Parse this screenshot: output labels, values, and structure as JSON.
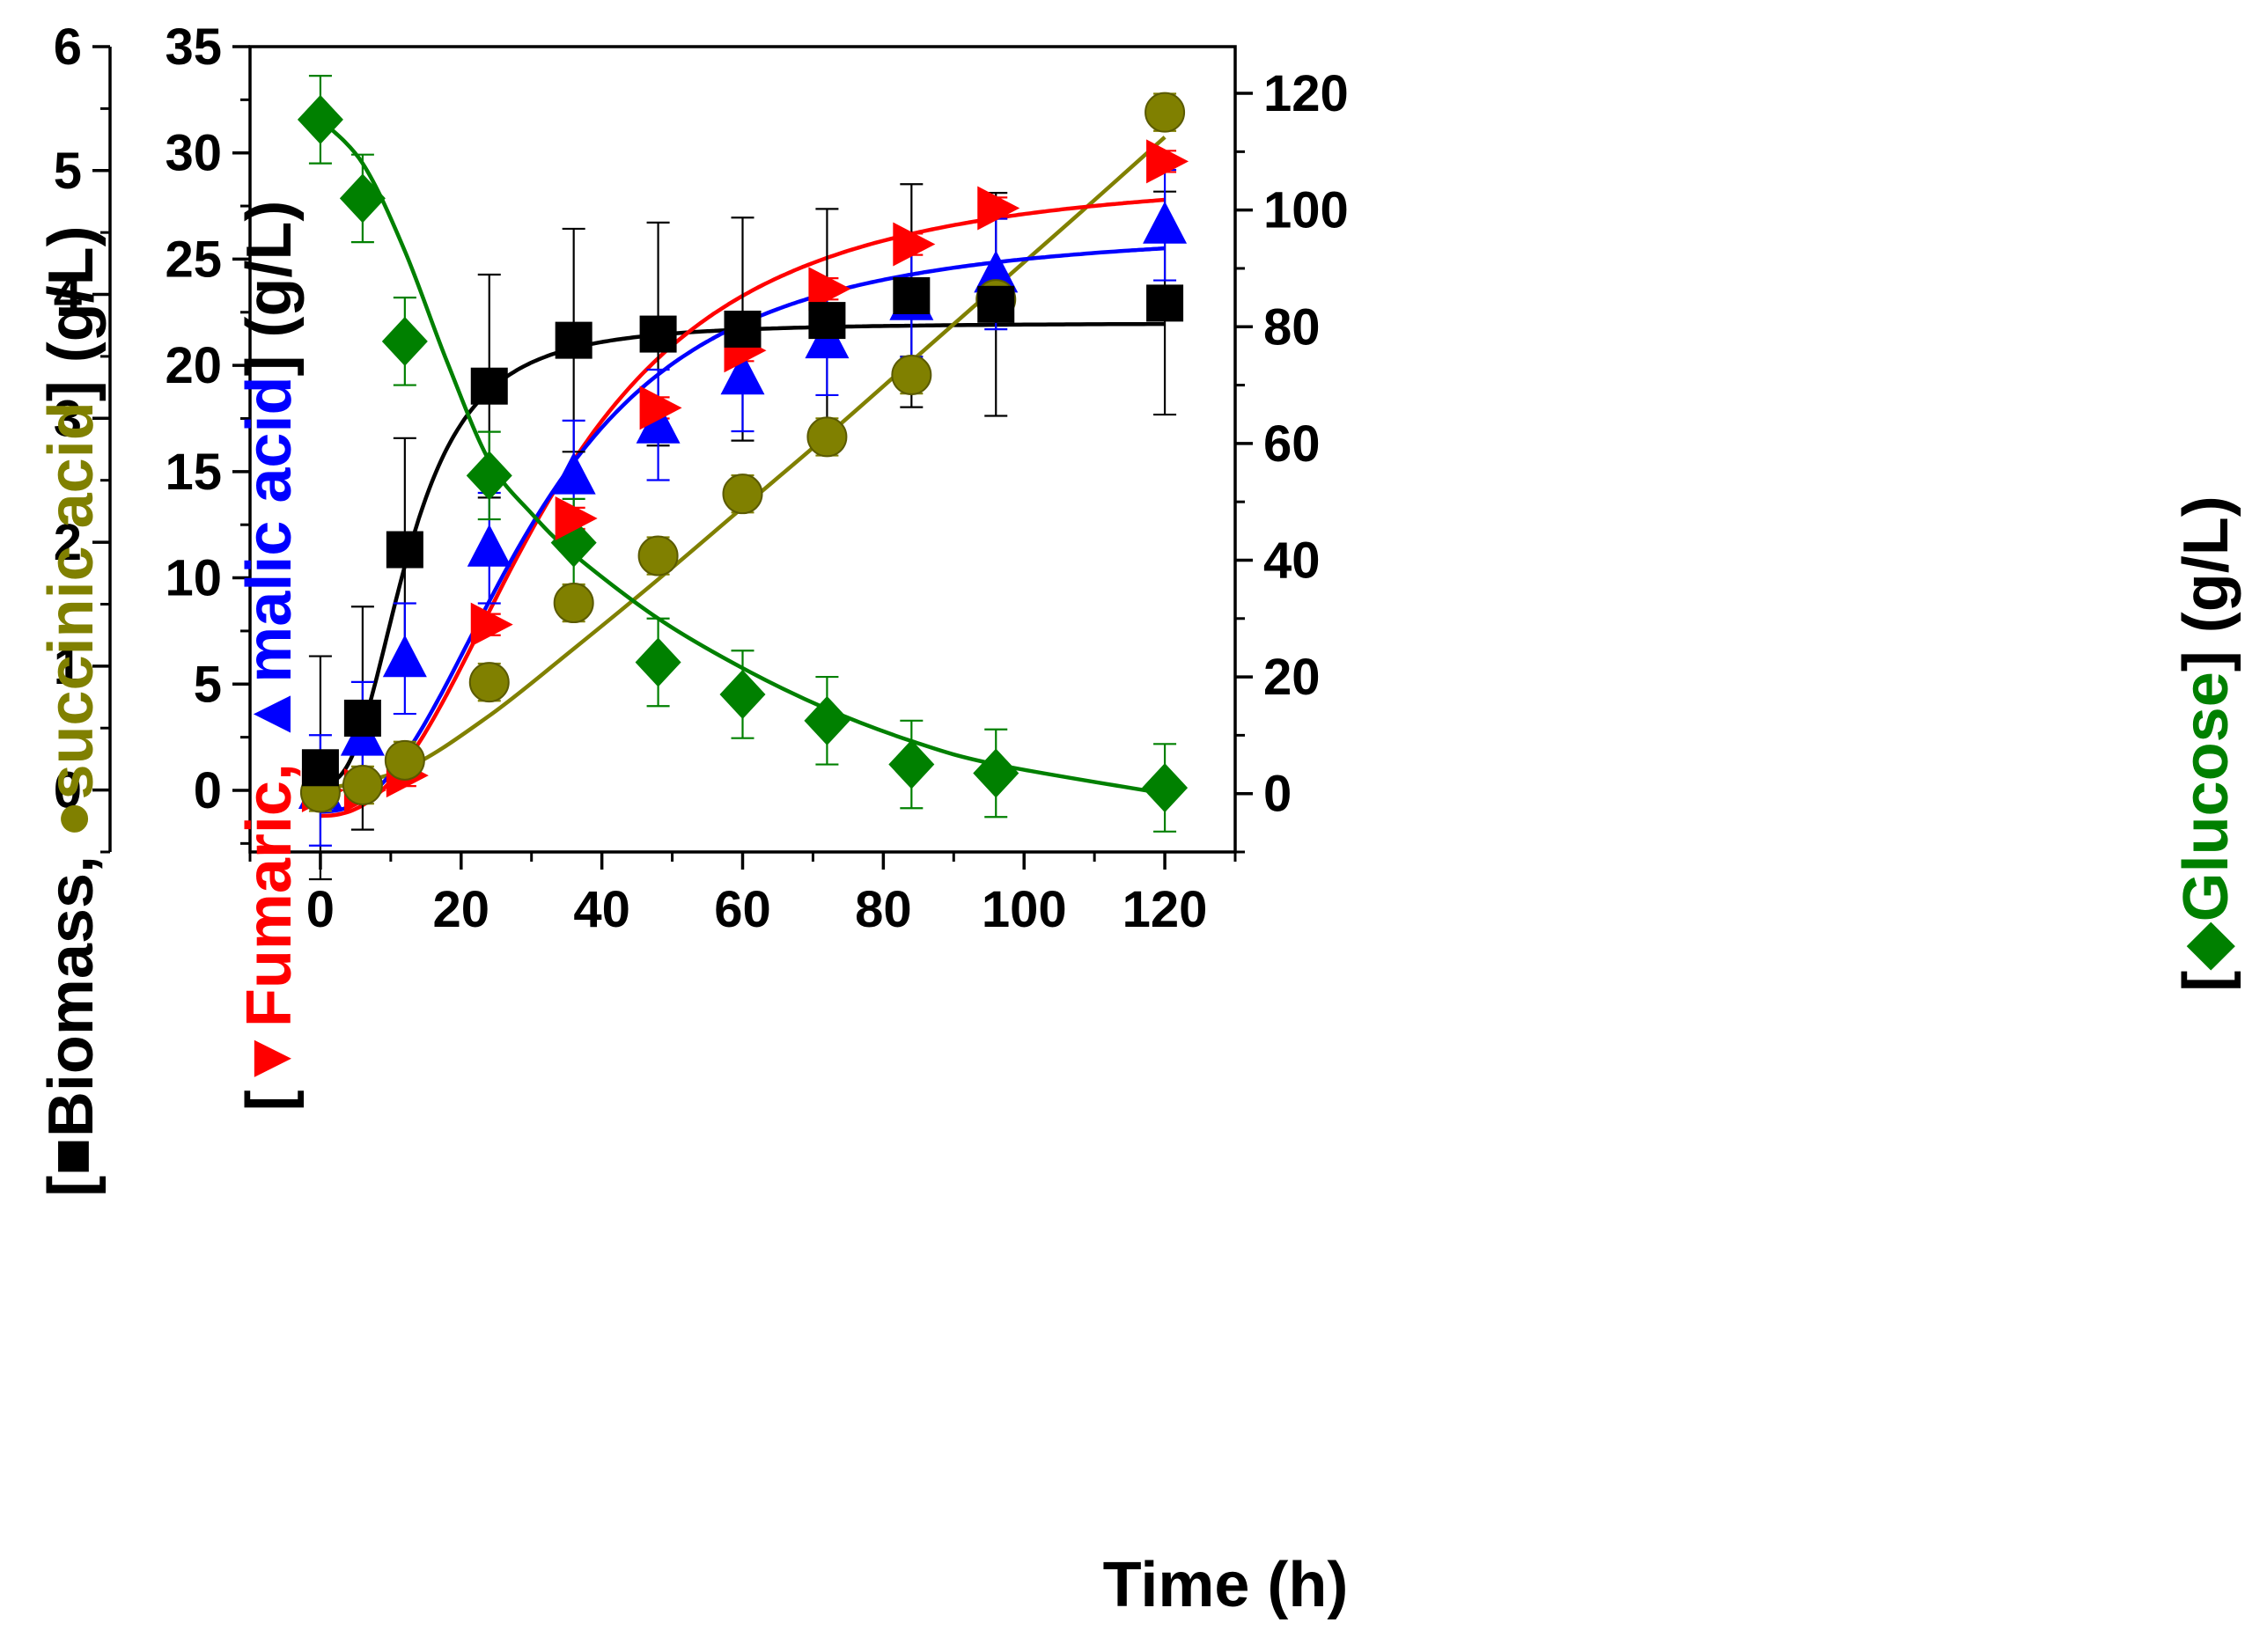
{
  "chart_data": {
    "type": "scatter",
    "x_axis": {
      "label": "Time (h)",
      "range": [
        -10,
        130
      ],
      "ticks": [
        0,
        20,
        40,
        60,
        80,
        100,
        120
      ]
    },
    "y_axes": {
      "biomass": {
        "range": [
          -0.5,
          6
        ],
        "ticks": [
          0,
          1,
          2,
          3,
          4,
          5,
          6
        ],
        "label_parts": [
          {
            "text": "[",
            "color": "#000000"
          },
          {
            "text": "■",
            "color": "#000000"
          },
          {
            "text": "Biomass, ",
            "color": "#000000"
          },
          {
            "text": "●",
            "color": "#808000"
          },
          {
            "text": "succinic acid",
            "color": "#808000"
          },
          {
            "text": "] (g/L)",
            "color": "#000000"
          }
        ]
      },
      "acids": {
        "range": [
          -2.9,
          35
        ],
        "ticks": [
          0,
          5,
          10,
          15,
          20,
          25,
          30,
          35
        ],
        "label_parts": [
          {
            "text": "[",
            "color": "#000000"
          },
          {
            "text": "▼",
            "color": "#ff0000"
          },
          {
            "text": "Fumaric, ",
            "color": "#ff0000"
          },
          {
            "text": "▲",
            "color": "#0000ff"
          },
          {
            "text": "malic acid",
            "color": "#0000ff"
          },
          {
            "text": "] (g/L)",
            "color": "#000000"
          }
        ]
      },
      "glucose": {
        "range": [
          -10,
          128
        ],
        "ticks": [
          0,
          20,
          40,
          60,
          80,
          100,
          120
        ],
        "label_parts": [
          {
            "text": "[",
            "color": "#000000"
          },
          {
            "text": "◆",
            "color": "#008000"
          },
          {
            "text": "Glucose",
            "color": "#008000"
          },
          {
            "text": "] (g/L)",
            "color": "#000000"
          }
        ]
      }
    },
    "x": [
      0,
      6,
      12,
      24,
      36,
      48,
      60,
      72,
      84,
      96,
      120
    ],
    "series": [
      {
        "name": "Biomass",
        "axis": "biomass",
        "marker": "square",
        "color": "#000000",
        "values": [
          0.18,
          0.58,
          1.94,
          3.26,
          3.63,
          3.68,
          3.72,
          3.79,
          3.99,
          3.92,
          3.93
        ],
        "errors": [
          0.9,
          0.9,
          0.9,
          0.9,
          0.9,
          0.9,
          0.9,
          0.9,
          0.9,
          0.9,
          0.9
        ],
        "fit": {
          "type": "logistic",
          "A1": 0.05,
          "A2": 3.77,
          "x0": 12.5,
          "p": 2.7
        }
      },
      {
        "name": "Succinic acid",
        "axis": "biomass",
        "marker": "circle",
        "color": "#808000",
        "values": [
          -0.02,
          0.04,
          0.24,
          0.87,
          1.51,
          1.89,
          2.39,
          2.85,
          3.35,
          3.96,
          5.47
        ],
        "errors": [
          0.15,
          0.15,
          0.15,
          0.15,
          0.15,
          0.15,
          0.15,
          0.15,
          0.15,
          0.15,
          0.15
        ],
        "fit": {
          "type": "polyline",
          "x": [
            0,
            12,
            24,
            36,
            48,
            60,
            72,
            84,
            96,
            108,
            120
          ],
          "y": [
            0,
            0.17,
            0.6,
            1.14,
            1.7,
            2.28,
            2.86,
            3.46,
            4.06,
            4.66,
            5.27
          ]
        }
      },
      {
        "name": "Fumaric acid",
        "axis": "acids",
        "marker": "triangle-right",
        "color": "#ff0000",
        "values": [
          0,
          0,
          0.7,
          7.8,
          12.8,
          18,
          20.7,
          23.6,
          25.7,
          27.4,
          29.6
        ],
        "errors": [
          0.5,
          0.5,
          0.5,
          0.5,
          0.5,
          0.5,
          0.5,
          0.5,
          0.5,
          0.5,
          0.5
        ],
        "fit": {
          "type": "logistic",
          "A1": -1.2,
          "A2": 29.1,
          "x0": 33,
          "p": 2.4
        }
      },
      {
        "name": "Malic acid",
        "axis": "acids",
        "marker": "triangle-up",
        "color": "#0000ff",
        "values": [
          0,
          2.5,
          6.2,
          11.4,
          14.8,
          17.2,
          19.5,
          21.2,
          23,
          24.3,
          26.6
        ],
        "errors": [
          2.6,
          2.6,
          2.6,
          2.6,
          2.6,
          2.6,
          2.6,
          2.6,
          2.6,
          2.6,
          2.6
        ],
        "fit": {
          "type": "logistic",
          "A1": -1.0,
          "A2": 26.5,
          "x0": 30.5,
          "p": 2.4
        }
      },
      {
        "name": "Glucose",
        "axis": "glucose",
        "marker": "diamond",
        "color": "#008000",
        "values": [
          115.5,
          102,
          77.5,
          54.5,
          43,
          22.5,
          17,
          12.5,
          5,
          3.5,
          1
        ],
        "errors": [
          7.5,
          7.5,
          7.5,
          7.5,
          7.5,
          7.5,
          7.5,
          7.5,
          7.5,
          7.5,
          7.5
        ],
        "fit": {
          "type": "polyline",
          "x": [
            0,
            6,
            12,
            18,
            24,
            30,
            36,
            48,
            60,
            72,
            84,
            96,
            120
          ],
          "y": [
            115.5,
            108,
            93,
            74,
            57,
            48,
            41,
            30,
            21.5,
            14.5,
            9,
            5,
            0
          ]
        }
      }
    ]
  }
}
